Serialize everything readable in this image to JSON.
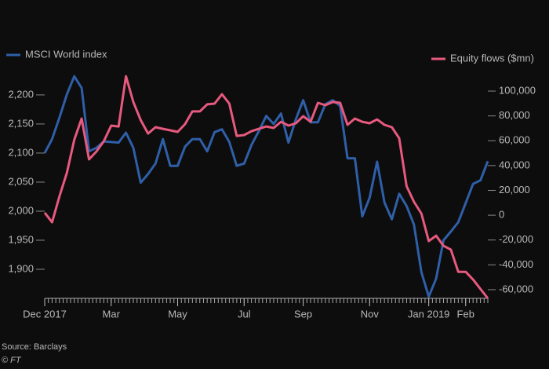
{
  "chart_data": {
    "type": "line",
    "categories": [
      "Dec 2017",
      null,
      null,
      null,
      null,
      null,
      null,
      null,
      null,
      "Mar",
      null,
      null,
      null,
      null,
      null,
      null,
      null,
      null,
      "May",
      null,
      null,
      null,
      null,
      null,
      null,
      null,
      null,
      "Jul",
      null,
      null,
      null,
      null,
      null,
      null,
      null,
      "Sep",
      null,
      null,
      null,
      null,
      null,
      null,
      null,
      null,
      "Nov",
      null,
      null,
      null,
      null,
      null,
      null,
      null,
      "Jan 2019",
      null,
      null,
      null,
      null,
      "Feb",
      null,
      null,
      null
    ],
    "series": [
      {
        "name": "MSCI World index",
        "color": "#2f5fa8",
        "axis": "y",
        "values": [
          2100,
          2124,
          2161,
          2201,
          2232,
          2212,
          2103,
          2109,
          2120,
          2119,
          2118,
          2135,
          2109,
          2049,
          2064,
          2082,
          2124,
          2078,
          2078,
          2111,
          2124,
          2124,
          2103,
          2136,
          2141,
          2119,
          2078,
          2082,
          2114,
          2138,
          2164,
          2150,
          2168,
          2118,
          2158,
          2191,
          2153,
          2153,
          2184,
          2191,
          2181,
          2091,
          2091,
          1991,
          2023,
          2085,
          2015,
          1986,
          2030,
          2009,
          1977,
          1895,
          1853,
          1884,
          1950,
          1965,
          1981,
          2014,
          2047,
          2053,
          2086
        ]
      },
      {
        "name": "Equity flows ($mn)",
        "color": "#e8597f",
        "axis": "y2",
        "values": [
          2000,
          -5700,
          15200,
          34200,
          60800,
          77900,
          45000,
          51300,
          59500,
          72200,
          71500,
          112000,
          91200,
          76600,
          65800,
          70900,
          69600,
          68400,
          67100,
          73400,
          83600,
          83600,
          89300,
          89900,
          97500,
          89900,
          63900,
          64600,
          67700,
          69600,
          71500,
          70300,
          75300,
          72200,
          74100,
          79800,
          75300,
          90500,
          88600,
          91200,
          90500,
          72800,
          77900,
          75300,
          74100,
          77200,
          72800,
          70900,
          62000,
          23400,
          10800,
          1300,
          -20900,
          -16500,
          -24700,
          -27800,
          -45600,
          -45600,
          -51900,
          -59500,
          -67000
        ]
      }
    ],
    "ylim": [
      1850,
      2235
    ],
    "yticks": [
      {
        "value": 1900,
        "label": "1,900"
      },
      {
        "value": 1950,
        "label": "1,950"
      },
      {
        "value": 2000,
        "label": "2,000"
      },
      {
        "value": 2050,
        "label": "2,050"
      },
      {
        "value": 2100,
        "label": "2,100"
      },
      {
        "value": 2150,
        "label": "2,150"
      },
      {
        "value": 2200,
        "label": "2,200"
      }
    ],
    "y2lim": [
      -67000,
      113300
    ],
    "y2ticks": [
      {
        "value": -60000,
        "label": "-60,000"
      },
      {
        "value": -40000,
        "label": "-40,000"
      },
      {
        "value": -20000,
        "label": "-20,000"
      },
      0,
      {
        "value": 20000,
        "label": "20,000"
      },
      {
        "value": 40000,
        "label": "40,000"
      },
      {
        "value": 60000,
        "label": "60,000"
      },
      {
        "value": 80000,
        "label": "80,000"
      },
      {
        "value": 100000,
        "label": "100,000"
      }
    ],
    "source": "Source: Barclays",
    "credit": "© FT"
  }
}
